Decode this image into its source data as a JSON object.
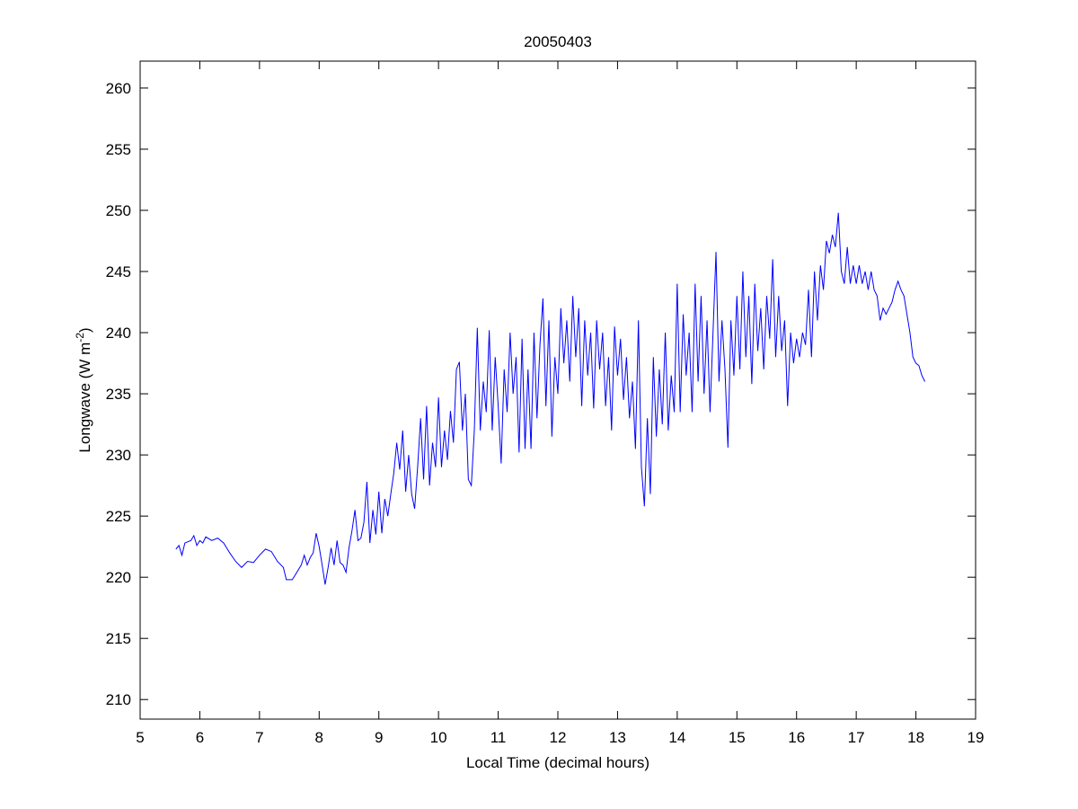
{
  "chart_data": {
    "type": "line",
    "title": "20050403",
    "xlabel": "Local Time (decimal hours)",
    "ylabel": {
      "text": "Longwave (W m",
      "superscript": "-2",
      "suffix": ")"
    },
    "xlim": [
      5,
      19
    ],
    "xticks": [
      5,
      6,
      7,
      8,
      9,
      10,
      11,
      12,
      13,
      14,
      15,
      16,
      17,
      18,
      19
    ],
    "ylim": [
      208.4,
      262.2
    ],
    "yticks": [
      210,
      215,
      220,
      225,
      230,
      235,
      240,
      245,
      250,
      255,
      260
    ],
    "grid": false,
    "series": [
      {
        "color": "#0000ff",
        "x": [
          5.6,
          5.65,
          5.7,
          5.75,
          5.85,
          5.9,
          5.95,
          6.0,
          6.05,
          6.1,
          6.2,
          6.3,
          6.4,
          6.5,
          6.6,
          6.7,
          6.8,
          6.9,
          7.0,
          7.1,
          7.2,
          7.3,
          7.4,
          7.45,
          7.55,
          7.6,
          7.7,
          7.75,
          7.8,
          7.85,
          7.9,
          7.95,
          8.0,
          8.05,
          8.1,
          8.15,
          8.2,
          8.25,
          8.3,
          8.35,
          8.4,
          8.45,
          8.5,
          8.55,
          8.6,
          8.65,
          8.7,
          8.75,
          8.8,
          8.85,
          8.9,
          8.95,
          9.0,
          9.05,
          9.1,
          9.15,
          9.2,
          9.25,
          9.3,
          9.35,
          9.4,
          9.45,
          9.5,
          9.55,
          9.6,
          9.65,
          9.7,
          9.75,
          9.8,
          9.85,
          9.9,
          9.95,
          10.0,
          10.05,
          10.1,
          10.15,
          10.2,
          10.25,
          10.3,
          10.35,
          10.4,
          10.45,
          10.5,
          10.55,
          10.6,
          10.65,
          10.7,
          10.75,
          10.8,
          10.85,
          10.9,
          10.95,
          11.0,
          11.05,
          11.1,
          11.15,
          11.2,
          11.25,
          11.3,
          11.35,
          11.4,
          11.45,
          11.5,
          11.55,
          11.6,
          11.65,
          11.7,
          11.75,
          11.8,
          11.85,
          11.9,
          11.95,
          12.0,
          12.05,
          12.1,
          12.15,
          12.2,
          12.25,
          12.3,
          12.35,
          12.4,
          12.45,
          12.5,
          12.55,
          12.6,
          12.65,
          12.7,
          12.75,
          12.8,
          12.85,
          12.9,
          12.95,
          13.0,
          13.05,
          13.1,
          13.15,
          13.2,
          13.25,
          13.3,
          13.35,
          13.4,
          13.45,
          13.5,
          13.55,
          13.6,
          13.65,
          13.7,
          13.75,
          13.8,
          13.85,
          13.9,
          13.95,
          14.0,
          14.05,
          14.1,
          14.15,
          14.2,
          14.25,
          14.3,
          14.35,
          14.4,
          14.45,
          14.5,
          14.55,
          14.6,
          14.65,
          14.7,
          14.75,
          14.8,
          14.85,
          14.9,
          14.95,
          15.0,
          15.05,
          15.1,
          15.15,
          15.2,
          15.25,
          15.3,
          15.35,
          15.4,
          15.45,
          15.5,
          15.55,
          15.6,
          15.65,
          15.7,
          15.75,
          15.8,
          15.85,
          15.9,
          15.95,
          16.0,
          16.05,
          16.1,
          16.15,
          16.2,
          16.25,
          16.3,
          16.35,
          16.4,
          16.45,
          16.5,
          16.55,
          16.6,
          16.65,
          16.7,
          16.75,
          16.8,
          16.85,
          16.9,
          16.95,
          17.0,
          17.05,
          17.1,
          17.15,
          17.2,
          17.25,
          17.3,
          17.35,
          17.4,
          17.45,
          17.5,
          17.55,
          17.6,
          17.65,
          17.7,
          17.75,
          17.8,
          17.85,
          17.9,
          17.95,
          18.0,
          18.05,
          18.1,
          18.15
        ],
        "values": [
          222.3,
          222.6,
          221.8,
          222.8,
          223.0,
          223.4,
          222.6,
          223.0,
          222.8,
          223.3,
          223.0,
          223.2,
          222.8,
          222.0,
          221.3,
          220.8,
          221.3,
          221.2,
          221.8,
          222.3,
          222.1,
          221.3,
          220.8,
          219.8,
          219.8,
          220.2,
          221.0,
          221.8,
          221.0,
          221.6,
          222.0,
          223.6,
          222.5,
          221.0,
          219.4,
          220.8,
          222.4,
          221.0,
          223.0,
          221.2,
          221.0,
          220.4,
          222.4,
          223.8,
          225.5,
          223.0,
          223.2,
          224.5,
          227.8,
          222.8,
          225.5,
          223.5,
          227.0,
          223.6,
          226.4,
          225.0,
          226.8,
          228.5,
          231.0,
          228.8,
          232.0,
          227.0,
          230.0,
          226.8,
          225.6,
          229.0,
          233.0,
          228.0,
          234.0,
          227.5,
          231.0,
          229.0,
          234.7,
          229.0,
          232.0,
          229.6,
          233.6,
          231.0,
          237.0,
          237.6,
          232.0,
          235.0,
          228.0,
          227.5,
          232.0,
          240.4,
          232.0,
          236.0,
          233.5,
          240.2,
          232.0,
          238.0,
          234.0,
          229.3,
          237.0,
          233.5,
          240.0,
          235.0,
          238.0,
          230.2,
          239.5,
          230.5,
          237.0,
          230.5,
          240.0,
          233.0,
          239.0,
          242.8,
          234.0,
          241.0,
          231.5,
          238.0,
          235.0,
          242.0,
          237.5,
          241.0,
          236.0,
          243.0,
          238.0,
          242.0,
          234.0,
          241.0,
          236.5,
          240.0,
          233.8,
          241.0,
          237.0,
          240.0,
          234.0,
          238.0,
          232.0,
          240.5,
          236.5,
          239.5,
          234.5,
          238.0,
          233.0,
          236.0,
          230.5,
          241.0,
          229.0,
          225.8,
          233.0,
          226.8,
          238.0,
          231.5,
          237.0,
          232.5,
          240.0,
          232.0,
          236.5,
          233.5,
          244.0,
          233.5,
          241.5,
          236.5,
          240.0,
          233.5,
          244.0,
          236.0,
          243.0,
          235.0,
          241.0,
          233.5,
          240.0,
          246.6,
          236.0,
          241.0,
          237.0,
          230.6,
          241.0,
          236.5,
          243.0,
          237.0,
          245.0,
          238.0,
          243.0,
          235.8,
          244.0,
          238.5,
          242.0,
          237.0,
          243.0,
          239.5,
          246.0,
          238.0,
          243.0,
          238.5,
          241.0,
          234.0,
          240.0,
          237.5,
          239.5,
          238.0,
          240.0,
          239.0,
          243.5,
          238.0,
          245.0,
          241.0,
          245.5,
          243.5,
          247.5,
          246.5,
          248.0,
          247.0,
          249.8,
          245.0,
          244.0,
          247.0,
          244.0,
          245.5,
          244.0,
          245.5,
          244.0,
          245.0,
          243.5,
          245.0,
          243.5,
          243.0,
          241.0,
          242.0,
          241.5,
          242.0,
          242.5,
          243.5,
          244.2,
          243.5,
          243.0,
          241.5,
          240.0,
          238.0,
          237.5,
          237.3,
          236.5,
          236.0
        ]
      }
    ]
  }
}
